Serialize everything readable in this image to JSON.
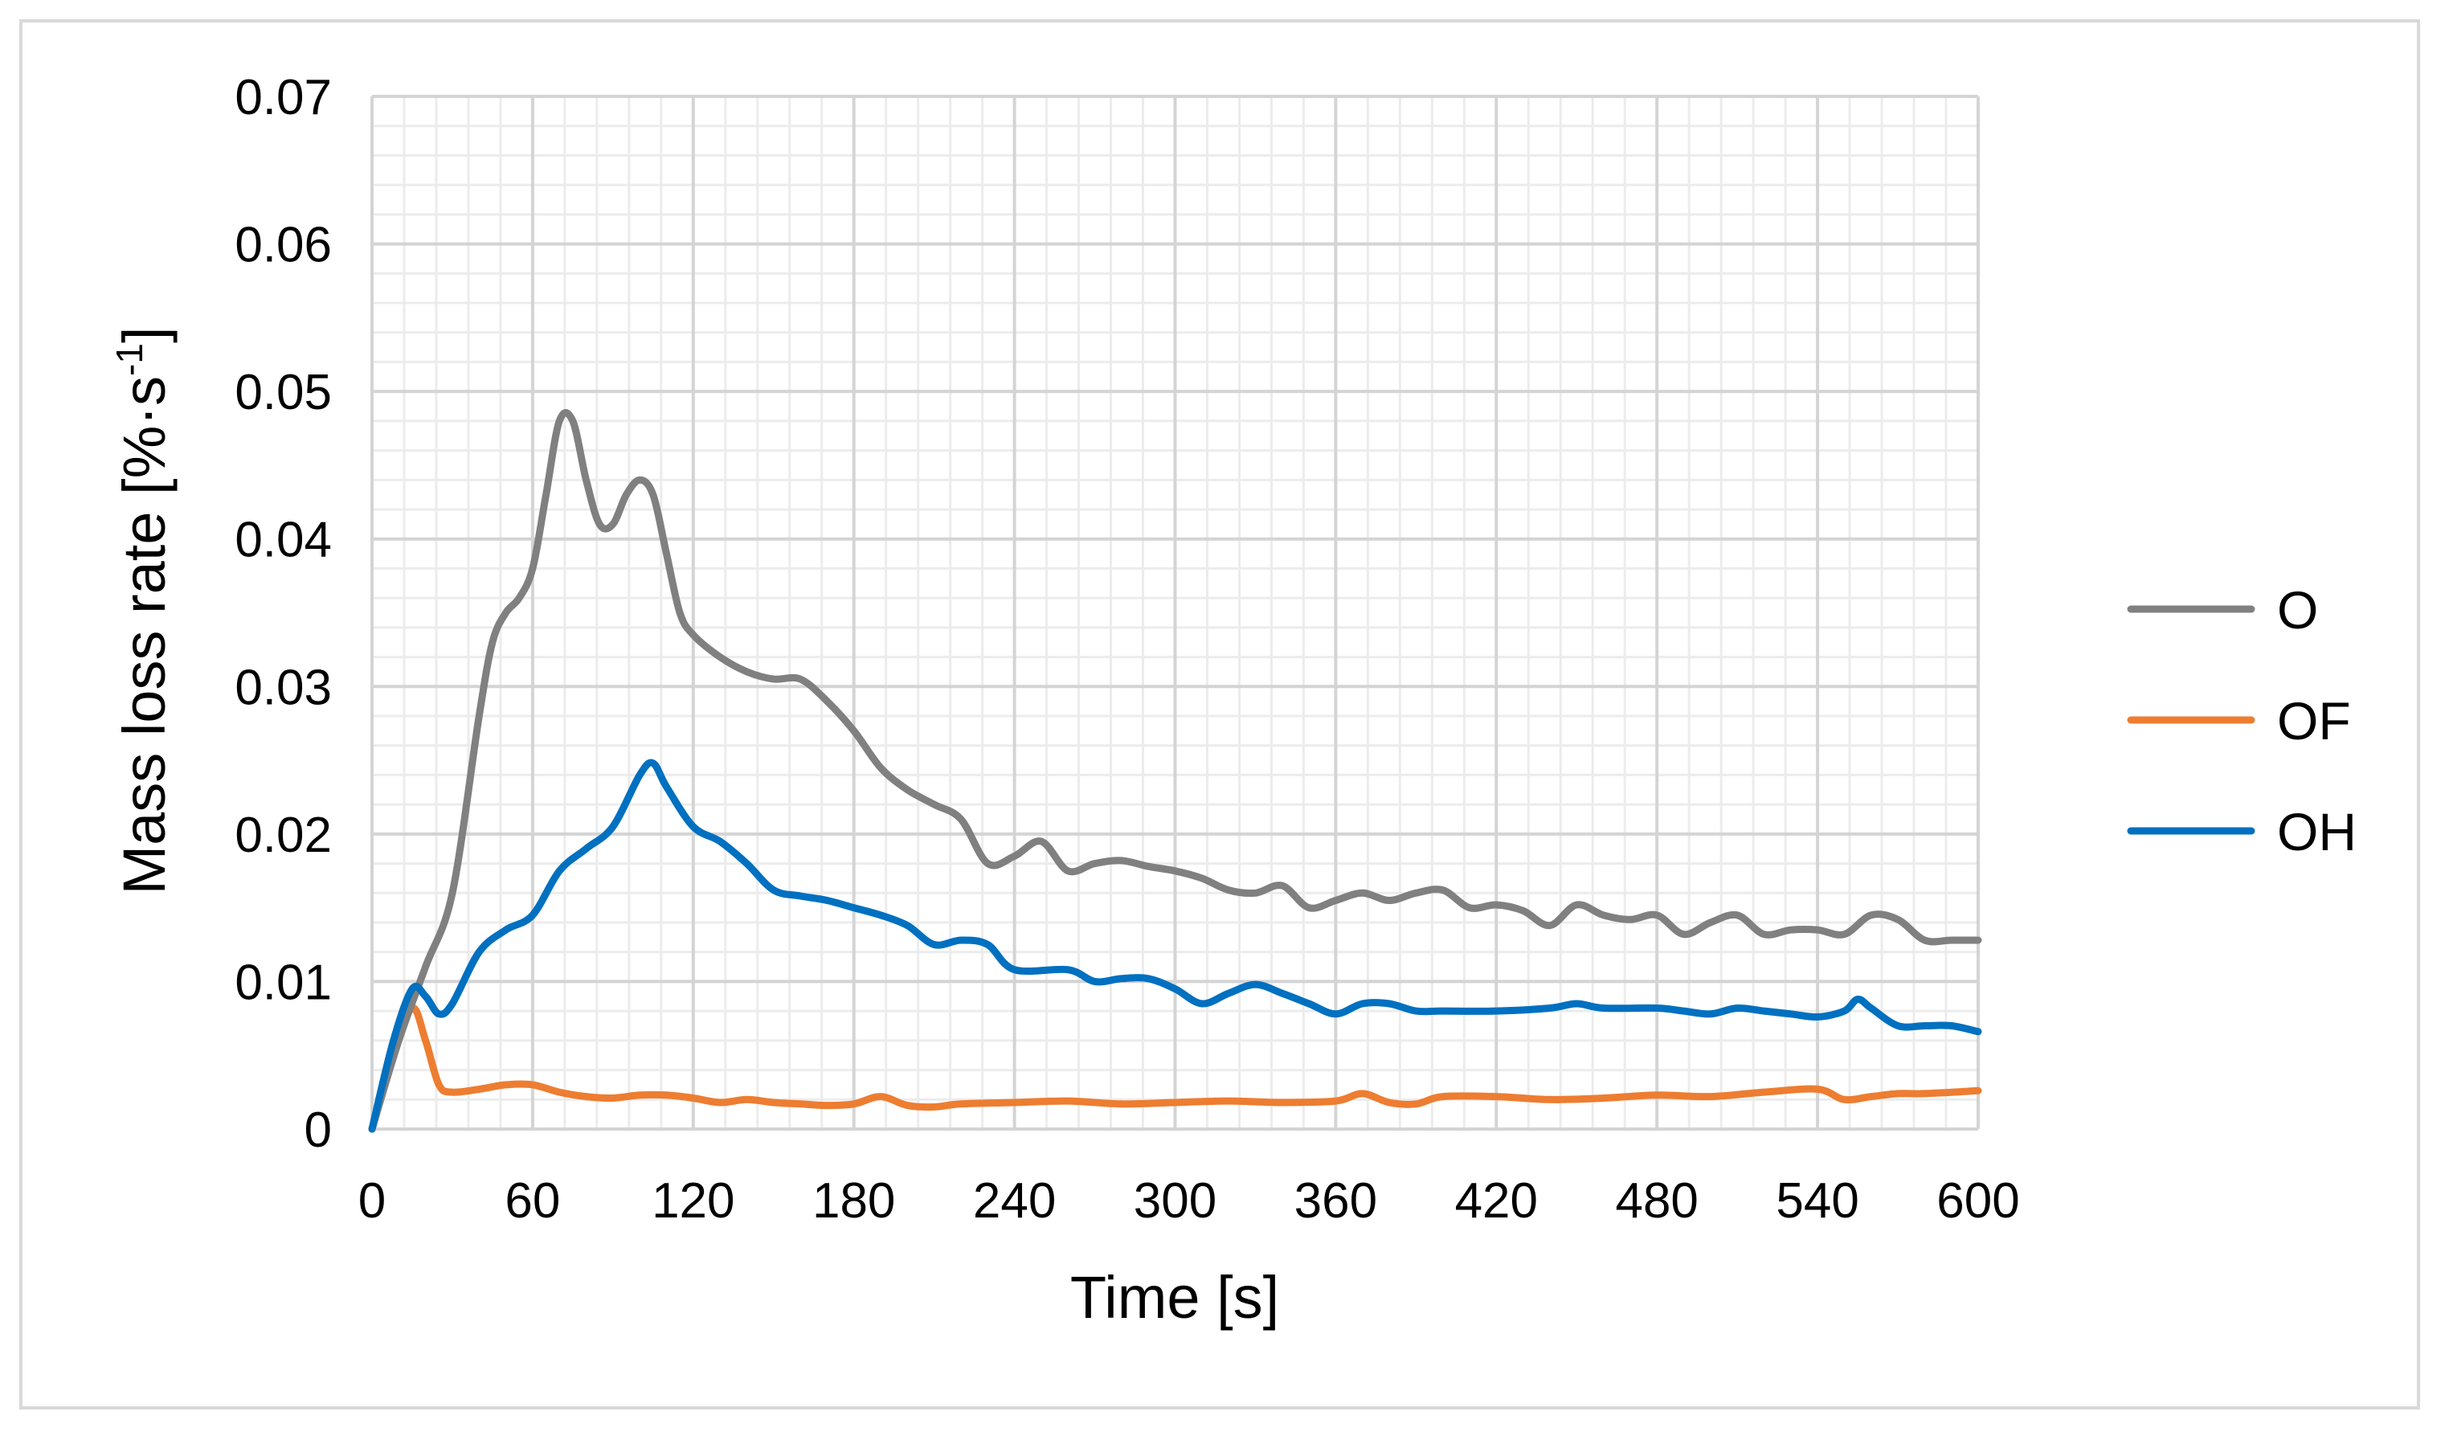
{
  "chart_data": {
    "type": "line",
    "title": "",
    "xlabel": "Time [s]",
    "ylabel": "Mass loss rate [%·s",
    "ylabel_superscript": "-1",
    "ylabel_close": "]",
    "xlim": [
      0,
      600
    ],
    "ylim": [
      0,
      0.07
    ],
    "x_ticks": [
      "0",
      "60",
      "120",
      "180",
      "240",
      "300",
      "360",
      "420",
      "480",
      "540",
      "600"
    ],
    "y_ticks": [
      "0",
      "0.01",
      "0.02",
      "0.03",
      "0.04",
      "0.05",
      "0.06",
      "0.07"
    ],
    "grid": true,
    "legend_position": "right",
    "series": [
      {
        "name": "O",
        "color": "#808080",
        "x": [
          0,
          10,
          20,
          30,
          40,
          45,
          50,
          55,
          60,
          65,
          70,
          75,
          80,
          85,
          90,
          95,
          100,
          105,
          110,
          115,
          120,
          130,
          140,
          150,
          160,
          170,
          180,
          190,
          200,
          210,
          220,
          230,
          240,
          250,
          260,
          270,
          280,
          290,
          300,
          310,
          320,
          330,
          340,
          350,
          360,
          370,
          380,
          390,
          400,
          410,
          420,
          430,
          440,
          450,
          460,
          470,
          480,
          490,
          500,
          510,
          520,
          530,
          540,
          550,
          560,
          570,
          580,
          590,
          600
        ],
        "values": [
          0,
          0.006,
          0.011,
          0.016,
          0.028,
          0.033,
          0.035,
          0.036,
          0.038,
          0.043,
          0.048,
          0.048,
          0.044,
          0.041,
          0.041,
          0.043,
          0.044,
          0.043,
          0.039,
          0.035,
          0.0335,
          0.032,
          0.031,
          0.0305,
          0.0305,
          0.029,
          0.027,
          0.0245,
          0.023,
          0.022,
          0.021,
          0.018,
          0.0185,
          0.0195,
          0.0175,
          0.018,
          0.0182,
          0.0178,
          0.0175,
          0.017,
          0.0162,
          0.016,
          0.0165,
          0.015,
          0.0155,
          0.016,
          0.0155,
          0.016,
          0.0162,
          0.015,
          0.0152,
          0.0148,
          0.0138,
          0.0152,
          0.0145,
          0.0142,
          0.0145,
          0.0132,
          0.014,
          0.0145,
          0.0132,
          0.0135,
          0.0135,
          0.0132,
          0.0145,
          0.0142,
          0.0128,
          0.0128,
          0.0128
        ]
      },
      {
        "name": "OF",
        "color": "#ed7d31",
        "x": [
          0,
          8,
          15,
          20,
          25,
          30,
          40,
          50,
          60,
          70,
          80,
          90,
          100,
          110,
          120,
          130,
          140,
          150,
          160,
          170,
          180,
          190,
          200,
          210,
          220,
          240,
          260,
          280,
          300,
          320,
          340,
          360,
          370,
          380,
          390,
          400,
          420,
          440,
          460,
          480,
          500,
          520,
          540,
          550,
          560,
          570,
          580,
          600
        ],
        "values": [
          0,
          0.005,
          0.0082,
          0.006,
          0.003,
          0.0025,
          0.0027,
          0.003,
          0.003,
          0.0025,
          0.0022,
          0.0021,
          0.0023,
          0.0023,
          0.0021,
          0.0018,
          0.002,
          0.0018,
          0.0017,
          0.0016,
          0.0017,
          0.0022,
          0.0016,
          0.0015,
          0.0017,
          0.0018,
          0.0019,
          0.0017,
          0.0018,
          0.0019,
          0.0018,
          0.0019,
          0.0024,
          0.0018,
          0.0017,
          0.0022,
          0.0022,
          0.002,
          0.0021,
          0.0023,
          0.0022,
          0.0025,
          0.0027,
          0.002,
          0.0022,
          0.0024,
          0.0024,
          0.0026
        ]
      },
      {
        "name": "OH",
        "color": "#0070c0",
        "x": [
          0,
          8,
          15,
          20,
          25,
          30,
          40,
          50,
          60,
          70,
          80,
          90,
          100,
          105,
          110,
          120,
          130,
          140,
          150,
          160,
          170,
          180,
          190,
          200,
          210,
          220,
          230,
          240,
          260,
          270,
          280,
          290,
          300,
          310,
          320,
          330,
          340,
          350,
          360,
          370,
          380,
          390,
          400,
          420,
          440,
          450,
          460,
          480,
          490,
          500,
          510,
          520,
          530,
          540,
          550,
          555,
          560,
          570,
          580,
          590,
          600
        ],
        "values": [
          0,
          0.006,
          0.0095,
          0.009,
          0.0078,
          0.0085,
          0.012,
          0.0135,
          0.0145,
          0.0175,
          0.019,
          0.0205,
          0.024,
          0.0248,
          0.0232,
          0.0205,
          0.0195,
          0.018,
          0.0162,
          0.0158,
          0.0155,
          0.015,
          0.0145,
          0.0138,
          0.0125,
          0.0128,
          0.0125,
          0.0108,
          0.0108,
          0.01,
          0.0102,
          0.0102,
          0.0095,
          0.0085,
          0.0092,
          0.0098,
          0.0092,
          0.0085,
          0.0078,
          0.0085,
          0.0085,
          0.008,
          0.008,
          0.008,
          0.0082,
          0.0085,
          0.0082,
          0.0082,
          0.008,
          0.0078,
          0.0082,
          0.008,
          0.0078,
          0.0076,
          0.008,
          0.0088,
          0.0082,
          0.007,
          0.007,
          0.007,
          0.0066
        ]
      }
    ]
  }
}
